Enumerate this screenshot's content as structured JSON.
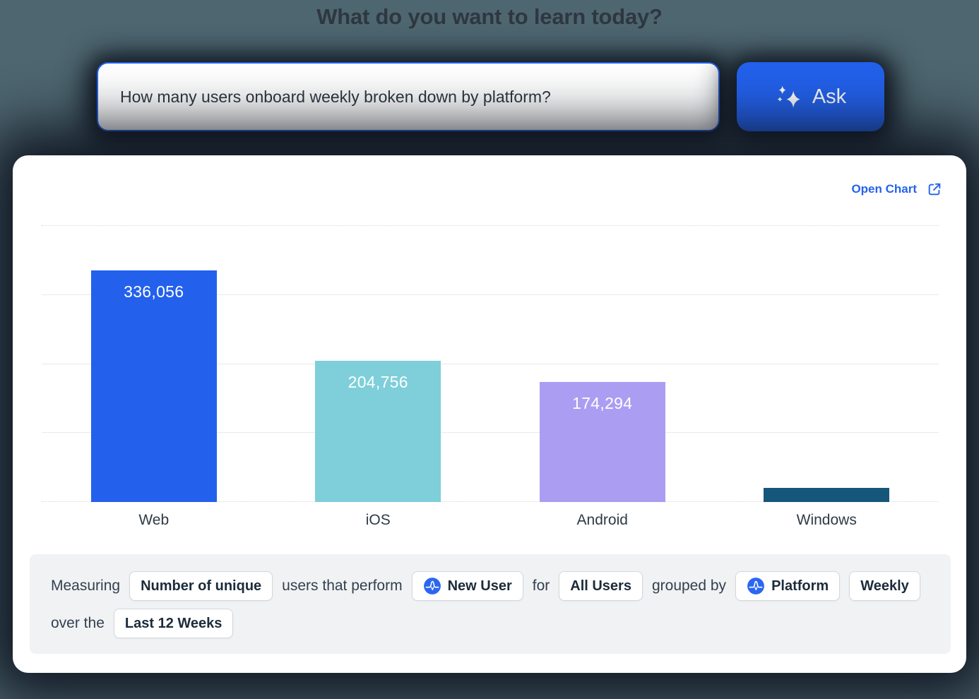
{
  "page": {
    "title": "What do you want to learn today?"
  },
  "search": {
    "value": "How many users onboard weekly broken down by platform?",
    "ask_label": "Ask"
  },
  "card": {
    "open_chart_label": "Open Chart"
  },
  "chart_data": {
    "type": "bar",
    "categories": [
      "Web",
      "iOS",
      "Android",
      "Windows"
    ],
    "values": [
      336056,
      204756,
      174294,
      20000
    ],
    "data_labels": [
      "336,056",
      "204,756",
      "174,294",
      ""
    ],
    "colors": [
      "#2361ec",
      "#7ecfd9",
      "#ab9df2",
      "#15567a"
    ],
    "title": "",
    "xlabel": "",
    "ylabel": "",
    "ylim": [
      0,
      400000
    ],
    "gridlines": [
      0,
      100000,
      200000,
      300000,
      400000
    ],
    "grid": true,
    "legend": "none"
  },
  "query_builder": {
    "line1": [
      {
        "type": "text",
        "label": "Measuring"
      },
      {
        "type": "chip",
        "label": "Number of unique"
      },
      {
        "type": "text",
        "label": "users that perform"
      },
      {
        "type": "chip",
        "label": "New User",
        "icon": "amplitude-event-icon"
      },
      {
        "type": "text",
        "label": "for"
      },
      {
        "type": "chip",
        "label": "All Users"
      },
      {
        "type": "text",
        "label": "grouped by"
      },
      {
        "type": "chip",
        "label": "Platform",
        "icon": "amplitude-event-icon"
      },
      {
        "type": "chip",
        "label": "Weekly"
      }
    ],
    "line2": [
      {
        "type": "text",
        "label": "over the"
      },
      {
        "type": "chip",
        "label": "Last 12 Weeks"
      }
    ]
  },
  "colors": {
    "accent_blue": "#2361ec",
    "page_background": "#4e6670",
    "shadow_navy": "#141b27",
    "card_background": "#ffffff",
    "footer_background": "#f1f2f4",
    "chip_border": "#d5d7dc",
    "grid_line": "#e9e9ea",
    "text_dark": "#2e3741"
  }
}
